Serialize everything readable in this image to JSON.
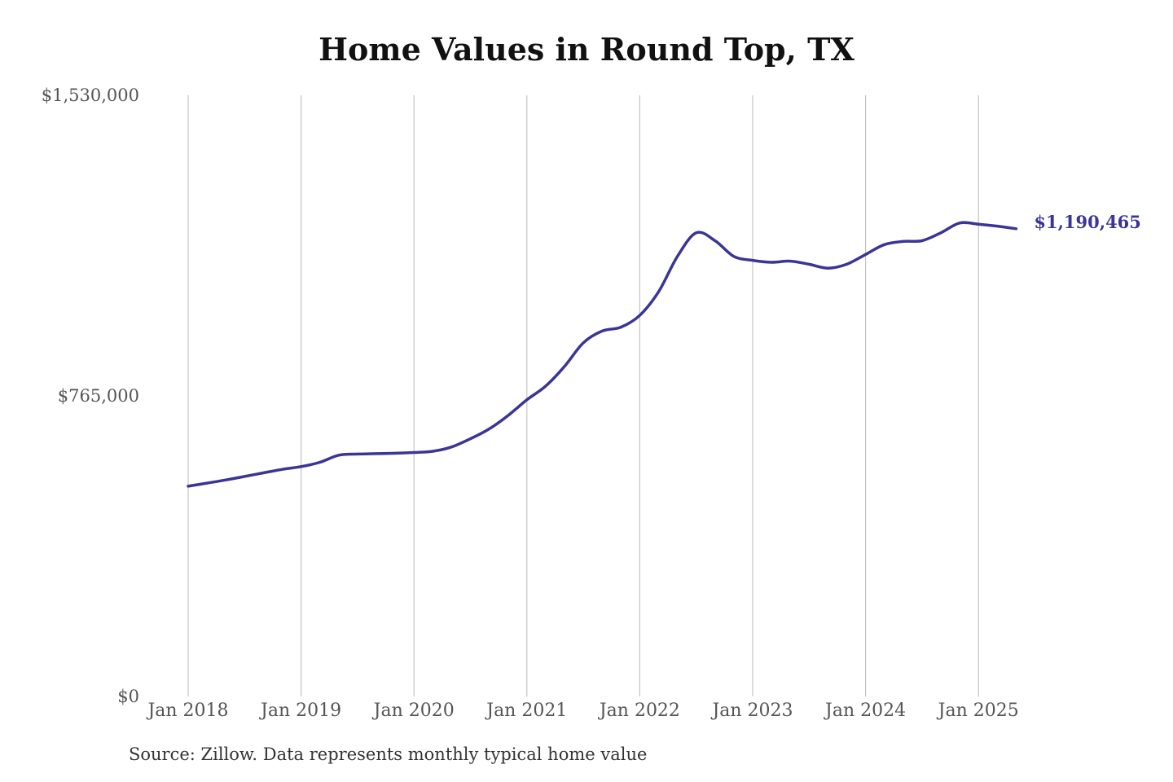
{
  "chart_data": {
    "type": "line",
    "title": "Home Values in Round Top, TX",
    "xlabel": "",
    "ylabel": "",
    "x_start": "2018-01",
    "x_tick_labels": [
      "Jan 2018",
      "Jan 2019",
      "Jan 2020",
      "Jan 2021",
      "Jan 2022",
      "Jan 2023",
      "Jan 2024",
      "Jan 2025"
    ],
    "y_tick_labels": [
      "$1,530,000",
      "$765,000",
      "$0"
    ],
    "y_ticks": [
      1530000,
      765000,
      0
    ],
    "ylim": [
      0,
      1530000
    ],
    "grid": "vertical",
    "x": [
      "2018-01",
      "2018-03",
      "2018-05",
      "2018-07",
      "2018-09",
      "2018-11",
      "2019-01",
      "2019-03",
      "2019-05",
      "2019-07",
      "2019-09",
      "2019-11",
      "2020-01",
      "2020-03",
      "2020-05",
      "2020-07",
      "2020-09",
      "2020-11",
      "2021-01",
      "2021-03",
      "2021-05",
      "2021-07",
      "2021-09",
      "2021-11",
      "2022-01",
      "2022-03",
      "2022-05",
      "2022-07",
      "2022-09",
      "2022-11",
      "2023-01",
      "2023-03",
      "2023-05",
      "2023-07",
      "2023-09",
      "2023-11",
      "2024-01",
      "2024-03",
      "2024-05",
      "2024-07",
      "2024-09",
      "2024-11",
      "2025-01",
      "2025-03",
      "2025-05"
    ],
    "series": [
      {
        "name": "",
        "color": "#3a3596",
        "values": [
          535000,
          543000,
          551000,
          560000,
          569000,
          578000,
          585000,
          596000,
          614000,
          617000,
          618000,
          619000,
          621000,
          624000,
          635000,
          656000,
          681000,
          715000,
          755000,
          790000,
          840000,
          900000,
          930000,
          940000,
          970000,
          1030000,
          1120000,
          1180000,
          1160000,
          1120000,
          1110000,
          1105000,
          1108000,
          1100000,
          1090000,
          1100000,
          1125000,
          1150000,
          1158000,
          1160000,
          1180000,
          1205000,
          1202000,
          1197000,
          1190465
        ]
      }
    ],
    "end_label": "$1,190,465",
    "source_note": "Source: Zillow. Data represents monthly typical home value"
  }
}
